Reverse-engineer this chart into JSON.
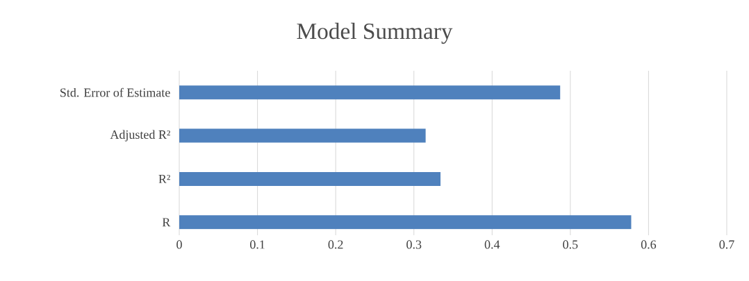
{
  "chart_data": {
    "type": "bar",
    "orientation": "horizontal",
    "title": "Model Summary",
    "categories": [
      "Std. Error of Estimate",
      "Adjusted R²",
      "R²",
      "R"
    ],
    "values": [
      0.487,
      0.315,
      0.334,
      0.578
    ],
    "color": "#4f81bd",
    "xlim": [
      0,
      0.7
    ],
    "xticks": [
      0,
      0.1,
      0.2,
      0.3,
      0.4,
      0.5,
      0.6,
      0.7
    ],
    "grid": "x"
  }
}
